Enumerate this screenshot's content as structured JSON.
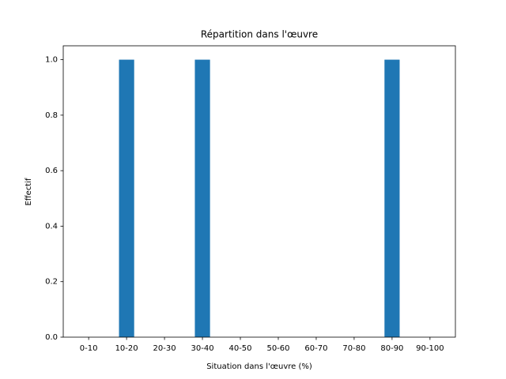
{
  "chart_data": {
    "type": "bar",
    "title": "Répartition dans l'œuvre",
    "x_label": "Situation dans l'œuvre (%)",
    "y_label": "Effectif",
    "categories": [
      "0-10",
      "10-20",
      "20-30",
      "30-40",
      "40-50",
      "50-60",
      "60-70",
      "70-80",
      "80-90",
      "90-100"
    ],
    "values": [
      0,
      1,
      0,
      1,
      0,
      0,
      0,
      0,
      1,
      0
    ],
    "color": "#1f77b4",
    "ylim": [
      0,
      1.05
    ],
    "yticks": [
      {
        "value": 0,
        "label": "0.0"
      },
      {
        "value": 0.2,
        "label": "0.2"
      },
      {
        "value": 0.4,
        "label": "0.4"
      },
      {
        "value": 0.6,
        "label": "0.6"
      },
      {
        "value": 0.8,
        "label": "0.8"
      },
      {
        "value": 1,
        "label": "1.0"
      }
    ],
    "grid": false
  }
}
